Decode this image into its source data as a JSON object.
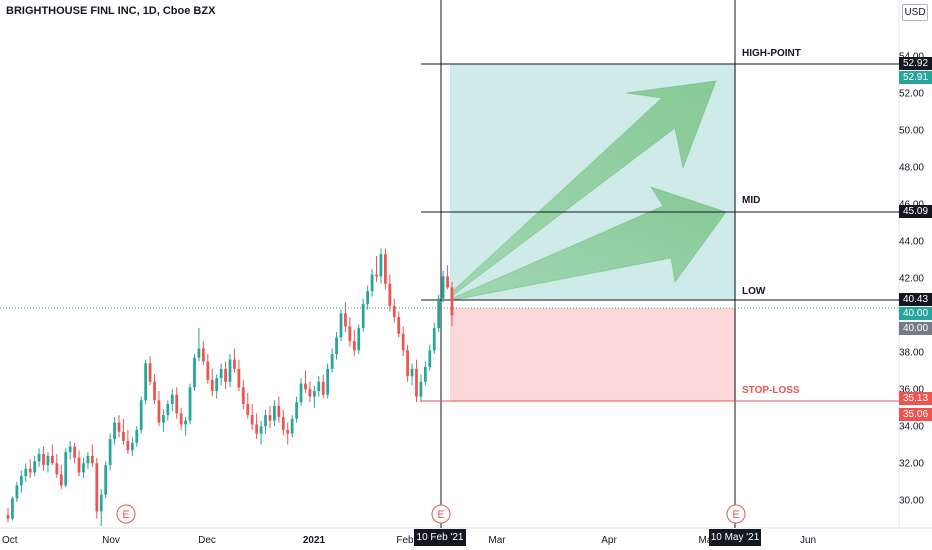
{
  "header": {
    "title": "BRIGHTHOUSE FINL INC, 1D, Cboe BZX",
    "currency": "USD"
  },
  "annotations": {
    "high": "HIGH-POINT",
    "mid": "MID",
    "low": "LOW",
    "stop": "STOP-LOSS"
  },
  "price_tags": {
    "high_line": "52.92",
    "high_bid": "52.91",
    "mid_line": "45.09",
    "low_line": "40.43",
    "last_price": "40.00",
    "prev_close": "40.00",
    "stop_line": "35.13",
    "stop_bid": "35.06"
  },
  "date_tags": {
    "start": "10 Feb '21",
    "end": "10 May '21"
  },
  "earnings_marker": "E",
  "colors": {
    "up": "#26a69a",
    "down": "#ef5350",
    "target_zone": "#26a69a",
    "stop_zone": "#ef5350",
    "arrow": "#4caf50",
    "crosshair": "#131722"
  },
  "chart_data": {
    "type": "candlestick",
    "ticker": "BRIGHTHOUSE FINL INC",
    "interval": "1D",
    "exchange": "Cboe BZX",
    "y_axis": {
      "ticks": [
        "30.00",
        "32.00",
        "34.00",
        "36.00",
        "38.00",
        "40.00",
        "42.00",
        "44.00",
        "46.00",
        "48.00",
        "50.00",
        "52.00",
        "54.00"
      ],
      "range": [
        28.5,
        56.6
      ],
      "unit": "USD"
    },
    "x_axis": {
      "ticks": [
        "Oct",
        "Nov",
        "Dec",
        "2021",
        "Feb",
        "Mar",
        "Apr",
        "May",
        "Jun"
      ]
    },
    "earnings_events": [
      "Nov",
      "Feb",
      "May"
    ],
    "levels": [
      {
        "name": "HIGH-POINT",
        "value": 52.92
      },
      {
        "name": "MID",
        "value": 45.09
      },
      {
        "name": "LOW",
        "value": 40.43
      },
      {
        "name": "STOP-LOSS",
        "value": 35.13
      }
    ],
    "position": {
      "entry": 40.43,
      "target": 52.92,
      "stop": 35.13,
      "start": "10 Feb '21",
      "end": "10 May '21"
    },
    "last_price": 40.0,
    "ohlc_approx": [
      [
        29.2,
        29.6,
        28.8,
        29.0
      ],
      [
        29.0,
        30.2,
        28.9,
        30.1
      ],
      [
        30.1,
        31.0,
        29.9,
        30.8
      ],
      [
        30.8,
        31.6,
        30.4,
        31.3
      ],
      [
        31.3,
        32.0,
        31.0,
        31.7
      ],
      [
        31.7,
        32.2,
        31.2,
        31.5
      ],
      [
        31.5,
        32.4,
        31.3,
        32.1
      ],
      [
        32.1,
        32.8,
        31.8,
        32.5
      ],
      [
        32.5,
        32.9,
        31.6,
        31.9
      ],
      [
        31.9,
        32.6,
        31.5,
        32.4
      ],
      [
        32.4,
        33.0,
        31.9,
        32.0
      ],
      [
        32.0,
        32.5,
        31.2,
        31.4
      ],
      [
        31.4,
        31.9,
        30.6,
        30.8
      ],
      [
        30.8,
        32.8,
        30.7,
        32.6
      ],
      [
        32.6,
        33.2,
        32.2,
        32.9
      ],
      [
        32.9,
        33.1,
        32.0,
        32.3
      ],
      [
        32.3,
        32.7,
        31.3,
        31.5
      ],
      [
        31.5,
        32.3,
        31.2,
        32.0
      ],
      [
        32.0,
        32.6,
        31.7,
        32.4
      ],
      [
        32.4,
        33.0,
        31.8,
        32.0
      ],
      [
        32.0,
        32.3,
        29.0,
        29.4
      ],
      [
        29.4,
        30.6,
        28.6,
        30.3
      ],
      [
        30.3,
        32.1,
        30.1,
        31.9
      ],
      [
        31.9,
        33.6,
        31.6,
        33.3
      ],
      [
        33.3,
        34.5,
        33.0,
        34.2
      ],
      [
        34.2,
        34.6,
        33.4,
        33.7
      ],
      [
        33.7,
        34.4,
        33.0,
        33.2
      ],
      [
        33.2,
        33.8,
        32.5,
        32.7
      ],
      [
        32.7,
        33.4,
        32.4,
        33.1
      ],
      [
        33.1,
        34.0,
        32.9,
        33.8
      ],
      [
        33.8,
        35.6,
        33.6,
        35.4
      ],
      [
        35.4,
        37.6,
        35.2,
        37.4
      ],
      [
        37.4,
        37.8,
        36.2,
        36.4
      ],
      [
        36.4,
        36.8,
        35.2,
        35.4
      ],
      [
        35.4,
        35.9,
        34.0,
        34.2
      ],
      [
        34.2,
        34.9,
        33.7,
        34.6
      ],
      [
        34.6,
        35.4,
        34.3,
        35.2
      ],
      [
        35.2,
        36.0,
        34.8,
        35.7
      ],
      [
        35.7,
        36.1,
        34.4,
        34.7
      ],
      [
        34.7,
        35.0,
        33.8,
        34.1
      ],
      [
        34.1,
        34.5,
        33.5,
        34.3
      ],
      [
        34.3,
        36.3,
        34.1,
        36.1
      ],
      [
        36.1,
        37.9,
        35.9,
        37.7
      ],
      [
        37.7,
        39.3,
        37.5,
        38.2
      ],
      [
        38.2,
        38.6,
        37.3,
        37.5
      ],
      [
        37.5,
        37.9,
        36.3,
        36.5
      ],
      [
        36.5,
        37.1,
        35.6,
        35.9
      ],
      [
        35.9,
        36.8,
        35.5,
        36.6
      ],
      [
        36.6,
        37.4,
        36.2,
        37.1
      ],
      [
        37.1,
        37.5,
        36.0,
        36.4
      ],
      [
        36.4,
        37.9,
        36.1,
        37.6
      ],
      [
        37.6,
        38.2,
        36.9,
        37.1
      ],
      [
        37.1,
        37.6,
        35.9,
        36.1
      ],
      [
        36.1,
        36.5,
        34.9,
        35.2
      ],
      [
        35.2,
        35.8,
        34.4,
        34.6
      ],
      [
        34.6,
        35.2,
        33.8,
        34.1
      ],
      [
        34.1,
        34.7,
        33.3,
        33.6
      ],
      [
        33.6,
        34.3,
        33.0,
        34.0
      ],
      [
        34.0,
        34.9,
        33.6,
        34.6
      ],
      [
        34.6,
        35.1,
        33.9,
        34.3
      ],
      [
        34.3,
        35.4,
        34.0,
        35.1
      ],
      [
        35.1,
        35.6,
        34.2,
        34.5
      ],
      [
        34.5,
        34.9,
        33.5,
        33.8
      ],
      [
        33.8,
        34.2,
        33.0,
        33.6
      ],
      [
        33.6,
        34.6,
        33.4,
        34.4
      ],
      [
        34.4,
        35.6,
        34.2,
        35.3
      ],
      [
        35.3,
        36.6,
        35.1,
        36.3
      ],
      [
        36.3,
        37.0,
        35.8,
        36.0
      ],
      [
        36.0,
        36.4,
        35.3,
        35.6
      ],
      [
        35.6,
        36.2,
        35.0,
        35.9
      ],
      [
        35.9,
        36.7,
        35.6,
        36.4
      ],
      [
        36.4,
        36.8,
        35.5,
        35.7
      ],
      [
        35.7,
        37.4,
        35.5,
        37.1
      ],
      [
        37.1,
        38.2,
        36.9,
        37.9
      ],
      [
        37.9,
        39.1,
        37.6,
        38.8
      ],
      [
        38.8,
        40.3,
        38.6,
        40.1
      ],
      [
        40.1,
        40.7,
        39.1,
        39.4
      ],
      [
        39.4,
        39.9,
        38.3,
        38.6
      ],
      [
        38.6,
        39.2,
        37.8,
        38.1
      ],
      [
        38.1,
        39.5,
        37.9,
        39.3
      ],
      [
        39.3,
        40.9,
        39.1,
        40.6
      ],
      [
        40.6,
        41.6,
        40.3,
        41.3
      ],
      [
        41.3,
        42.5,
        41.0,
        42.2
      ],
      [
        42.2,
        43.2,
        41.8,
        42.1
      ],
      [
        42.1,
        43.6,
        41.7,
        43.3
      ],
      [
        43.3,
        43.6,
        41.4,
        41.7
      ],
      [
        41.7,
        42.2,
        40.2,
        40.5
      ],
      [
        40.5,
        40.9,
        39.6,
        39.9
      ],
      [
        39.9,
        40.2,
        38.8,
        39.0
      ],
      [
        39.0,
        39.4,
        37.8,
        38.1
      ],
      [
        38.1,
        38.4,
        36.4,
        36.7
      ],
      [
        36.7,
        37.4,
        36.2,
        37.1
      ],
      [
        37.1,
        37.6,
        35.3,
        35.6
      ],
      [
        35.6,
        36.8,
        35.3,
        36.4
      ],
      [
        36.4,
        37.5,
        36.2,
        37.2
      ],
      [
        37.2,
        38.4,
        37.0,
        38.1
      ],
      [
        38.1,
        39.6,
        37.9,
        39.3
      ],
      [
        39.3,
        41.1,
        39.1,
        40.9
      ],
      [
        40.9,
        42.4,
        40.7,
        42.1
      ],
      [
        42.1,
        42.7,
        41.4,
        41.5
      ],
      [
        41.5,
        41.8,
        39.4,
        40.0
      ]
    ]
  }
}
